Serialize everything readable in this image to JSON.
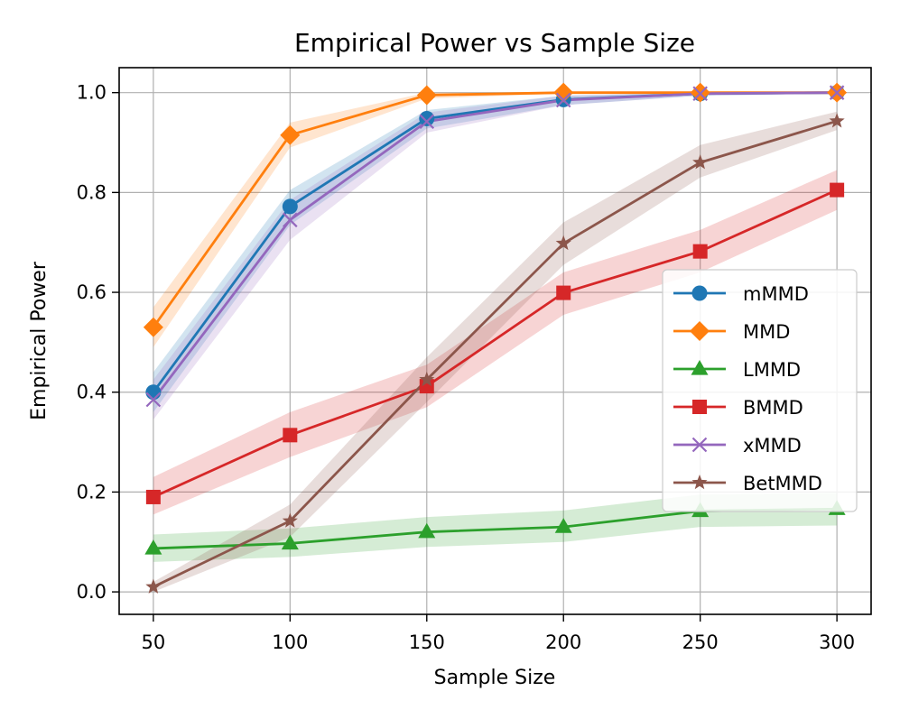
{
  "chart_data": {
    "type": "line",
    "title": "Empirical Power vs Sample Size",
    "xlabel": "Sample Size",
    "ylabel": "Empirical Power",
    "x": [
      50,
      100,
      150,
      200,
      250,
      300
    ],
    "xlim": [
      37.5,
      312.5
    ],
    "ylim": [
      -0.045,
      1.05
    ],
    "xticks": [
      "50",
      "100",
      "150",
      "200",
      "250",
      "300"
    ],
    "yticks": [
      "0.0",
      "0.2",
      "0.4",
      "0.6",
      "0.8",
      "1.0"
    ],
    "grid": true,
    "legend_position": "center-right",
    "series": [
      {
        "name": "mMMD",
        "color": "#1f77b4",
        "marker": "circle",
        "values": [
          0.4,
          0.772,
          0.948,
          0.986,
          0.998,
          1.0
        ],
        "lower": [
          0.36,
          0.735,
          0.928,
          0.975,
          0.994,
          0.998
        ],
        "upper": [
          0.44,
          0.805,
          0.965,
          0.994,
          1.0,
          1.0
        ]
      },
      {
        "name": "MMD",
        "color": "#ff7f0e",
        "marker": "diamond",
        "values": [
          0.53,
          0.915,
          0.995,
          1.0,
          1.0,
          1.0
        ],
        "lower": [
          0.49,
          0.89,
          0.988,
          0.998,
          1.0,
          1.0
        ],
        "upper": [
          0.57,
          0.94,
          1.0,
          1.0,
          1.0,
          1.0
        ]
      },
      {
        "name": "LMMD",
        "color": "#2ca02c",
        "marker": "triangle",
        "values": [
          0.087,
          0.097,
          0.12,
          0.13,
          0.162,
          0.166
        ],
        "lower": [
          0.06,
          0.07,
          0.09,
          0.1,
          0.13,
          0.133
        ],
        "upper": [
          0.115,
          0.127,
          0.15,
          0.163,
          0.195,
          0.198
        ]
      },
      {
        "name": "BMMD",
        "color": "#d62728",
        "marker": "square",
        "values": [
          0.19,
          0.314,
          0.412,
          0.599,
          0.682,
          0.805
        ],
        "lower": [
          0.155,
          0.27,
          0.37,
          0.555,
          0.64,
          0.765
        ],
        "upper": [
          0.23,
          0.36,
          0.455,
          0.64,
          0.725,
          0.845
        ]
      },
      {
        "name": "xMMD",
        "color": "#9467bd",
        "marker": "x",
        "values": [
          0.385,
          0.745,
          0.942,
          0.985,
          0.998,
          1.0
        ],
        "lower": [
          0.345,
          0.705,
          0.92,
          0.975,
          0.994,
          0.998
        ],
        "upper": [
          0.425,
          0.785,
          0.96,
          0.994,
          1.0,
          1.0
        ]
      },
      {
        "name": "BetMMD",
        "color": "#8c564b",
        "marker": "star",
        "values": [
          0.01,
          0.142,
          0.425,
          0.698,
          0.86,
          0.943
        ],
        "lower": [
          0.0,
          0.11,
          0.38,
          0.655,
          0.83,
          0.925
        ],
        "upper": [
          0.02,
          0.175,
          0.47,
          0.74,
          0.895,
          0.962
        ]
      }
    ]
  }
}
